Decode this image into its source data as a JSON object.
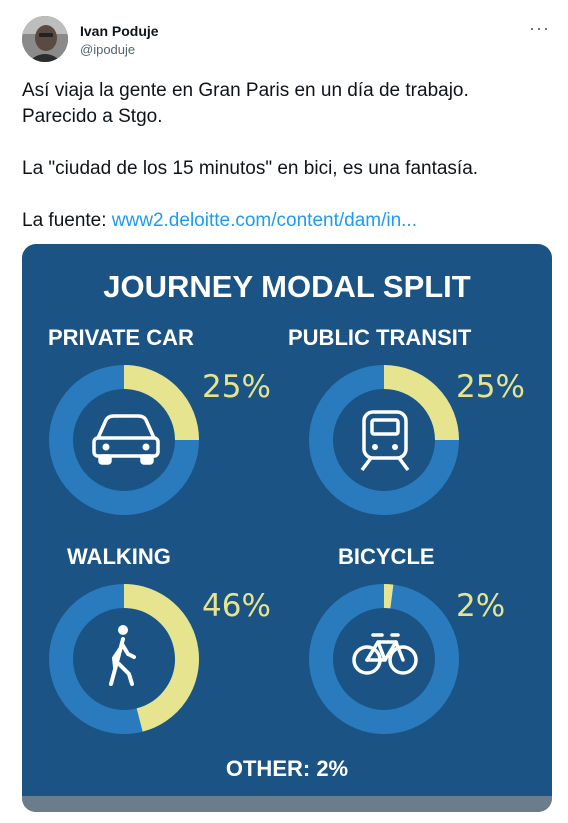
{
  "tweet": {
    "author_name": "Ivan Poduje",
    "author_handle": "@ipoduje",
    "more_label": "···",
    "text_line1": "Así viaja la gente en Gran Paris en un día de trabajo.",
    "text_line2": "Parecido a Stgo.",
    "text_line3": "La \"ciudad de los 15 minutos\" en bici, es una fantasía.",
    "source_prefix": "La fuente: ",
    "source_link": "www2.deloitte.com/content/dam/in..."
  },
  "infographic": {
    "title": "JOURNEY MODAL SPLIT",
    "footer": "OTHER: 2%",
    "colors": {
      "background": "#1a5384",
      "ring": "#2a7bbe",
      "highlight": "#e6e48f",
      "icon": "#ffffff"
    }
  },
  "chart_data": {
    "type": "donut",
    "title": "JOURNEY MODAL SPLIT",
    "categories": [
      "PRIVATE CAR",
      "PUBLIC TRANSIT",
      "WALKING",
      "BICYCLE"
    ],
    "values": [
      25,
      25,
      46,
      2
    ],
    "labels": [
      "25%",
      "25%",
      "46%",
      "2%"
    ],
    "icons": [
      "car-icon",
      "train-icon",
      "walking-person-icon",
      "bicycle-icon"
    ],
    "other": "OTHER: 2%"
  }
}
